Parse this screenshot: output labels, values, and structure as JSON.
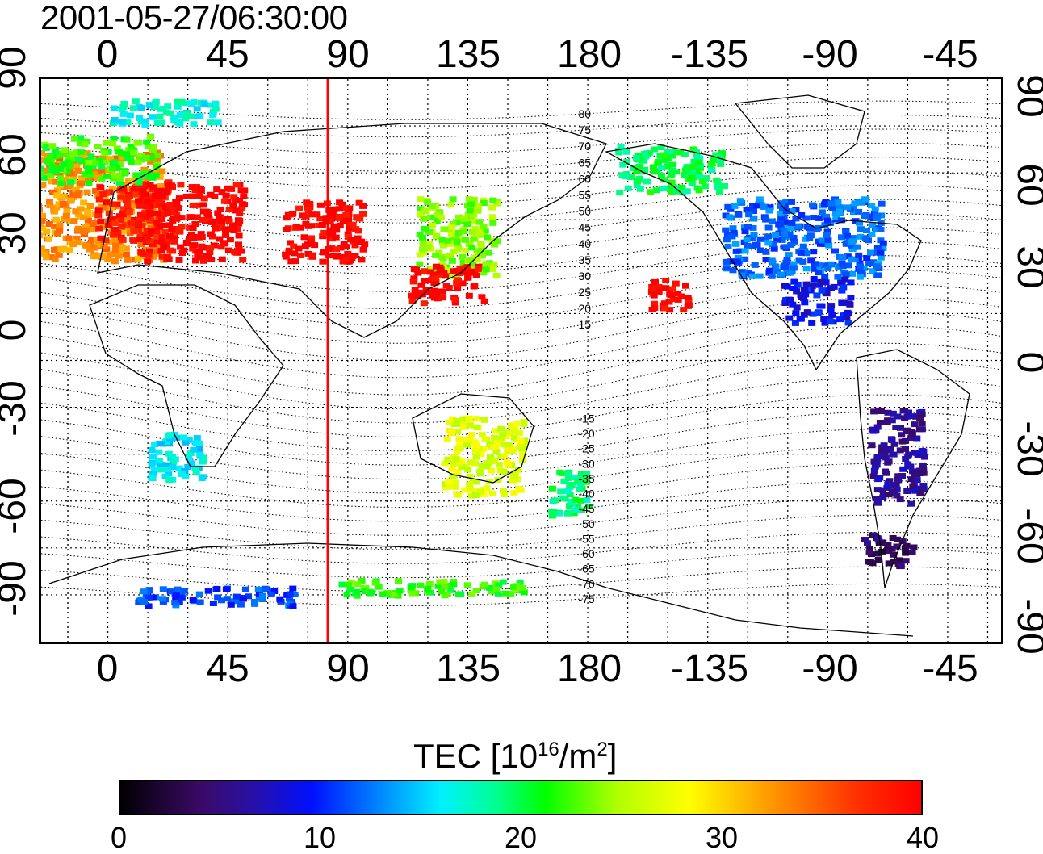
{
  "title": "2001-05-27/06:30:00",
  "x_ticks": [
    "0",
    "45",
    "90",
    "135",
    "180",
    "-135",
    "-90",
    "-45"
  ],
  "y_ticks": [
    "90",
    "60",
    "30",
    "0",
    "-30",
    "-60",
    "-90"
  ],
  "contour_labels": [
    "80",
    "75",
    "70",
    "65",
    "60",
    "55",
    "50",
    "45",
    "40",
    "35",
    "30",
    "25",
    "20",
    "15",
    "-15",
    "-20",
    "-25",
    "-30",
    "-35",
    "-40",
    "-45",
    "-50",
    "-55",
    "-60",
    "-65",
    "-70",
    "-75"
  ],
  "colorbar": {
    "title_prefix": "TEC  [10",
    "title_sup1": "16",
    "title_mid": "/m",
    "title_sup2": "2",
    "title_suffix": "]",
    "ticks": [
      "0",
      "10",
      "20",
      "30",
      "40"
    ],
    "min": 0,
    "max": 40
  },
  "marker_line": {
    "longitude": 82.5,
    "color": "#ff0000"
  },
  "colors": {
    "land": "#000000",
    "grid": "#000000"
  },
  "tec_regions": [
    {
      "lon": -10,
      "lat": 50,
      "w": 60,
      "h": 35,
      "value": 33
    },
    {
      "lon": 10,
      "lat": 48,
      "w": 30,
      "h": 20,
      "value": 38
    },
    {
      "lon": 30,
      "lat": 45,
      "w": 40,
      "h": 25,
      "value": 40
    },
    {
      "lon": -5,
      "lat": 65,
      "w": 45,
      "h": 15,
      "value": 22
    },
    {
      "lon": 20,
      "lat": 80,
      "w": 40,
      "h": 8,
      "value": 17
    },
    {
      "lon": 80,
      "lat": 42,
      "w": 30,
      "h": 20,
      "value": 40
    },
    {
      "lon": 130,
      "lat": 40,
      "w": 30,
      "h": 25,
      "value": 24
    },
    {
      "lon": 125,
      "lat": 25,
      "w": 30,
      "h": 12,
      "value": 40
    },
    {
      "lon": -100,
      "lat": 40,
      "w": 60,
      "h": 25,
      "value": 12
    },
    {
      "lon": -150,
      "lat": 62,
      "w": 40,
      "h": 15,
      "value": 20
    },
    {
      "lon": -95,
      "lat": 20,
      "w": 25,
      "h": 15,
      "value": 9
    },
    {
      "lon": -150,
      "lat": 22,
      "w": 15,
      "h": 10,
      "value": 40
    },
    {
      "lon": 25,
      "lat": -30,
      "w": 20,
      "h": 15,
      "value": 16
    },
    {
      "lon": 140,
      "lat": -30,
      "w": 30,
      "h": 25,
      "value": 27
    },
    {
      "lon": 172,
      "lat": -42,
      "w": 15,
      "h": 15,
      "value": 19
    },
    {
      "lon": -65,
      "lat": -30,
      "w": 20,
      "h": 30,
      "value": 6
    },
    {
      "lon": -68,
      "lat": -60,
      "w": 20,
      "h": 10,
      "value": 4
    },
    {
      "lon": 40,
      "lat": -75,
      "w": 60,
      "h": 6,
      "value": 11
    },
    {
      "lon": 120,
      "lat": -72,
      "w": 70,
      "h": 5,
      "value": 22
    }
  ]
}
